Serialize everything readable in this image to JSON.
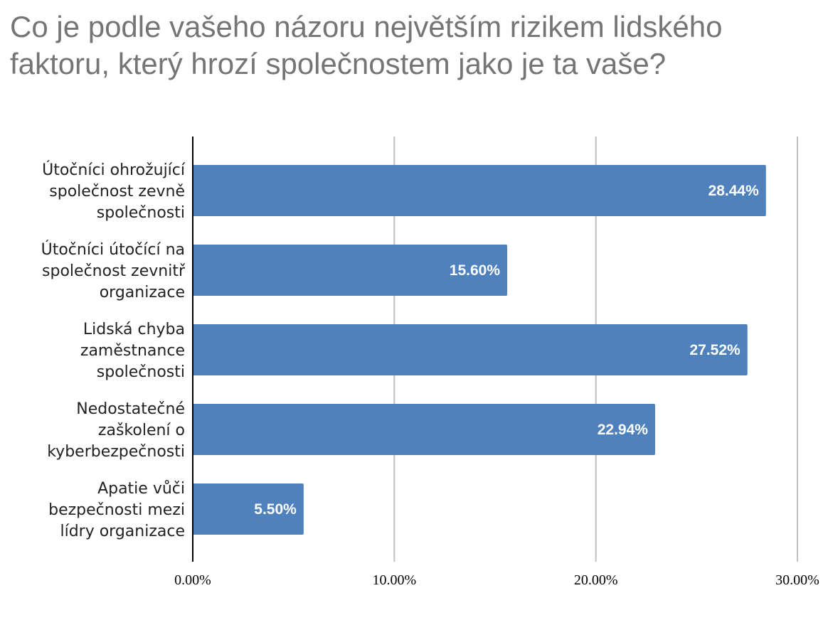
{
  "chart_data": {
    "type": "bar",
    "orientation": "horizontal",
    "title": "Co je podle vašeho názoru největším rizikem lidského faktoru, který hrozí společnostem jako je ta vaše?",
    "categories": [
      [
        "Útočníci ohrožující",
        "společnost zevně",
        "společnosti"
      ],
      [
        "Útočníci útočící na",
        "společnost zevnitř",
        "organizace"
      ],
      [
        "Lidská chyba",
        "zaměstnance",
        "společnosti"
      ],
      [
        "Nedostatečné",
        "zaškolení o",
        "kyberbezpečnosti"
      ],
      [
        "Apatie vůči",
        "bezpečnosti mezi",
        "lídry organizace"
      ]
    ],
    "values": [
      28.44,
      15.6,
      27.52,
      22.94,
      5.5
    ],
    "value_labels": [
      "28.44%",
      "15.60%",
      "27.52%",
      "22.94%",
      "5.50%"
    ],
    "x_ticks": [
      0,
      10,
      20,
      30
    ],
    "x_tick_labels": [
      "0.00%",
      "10.00%",
      "20.00%",
      "30.00%"
    ],
    "xlim": [
      0,
      30
    ],
    "grid": true,
    "bar_color": "#4F81BD",
    "grid_color": "#C0C0C0"
  }
}
